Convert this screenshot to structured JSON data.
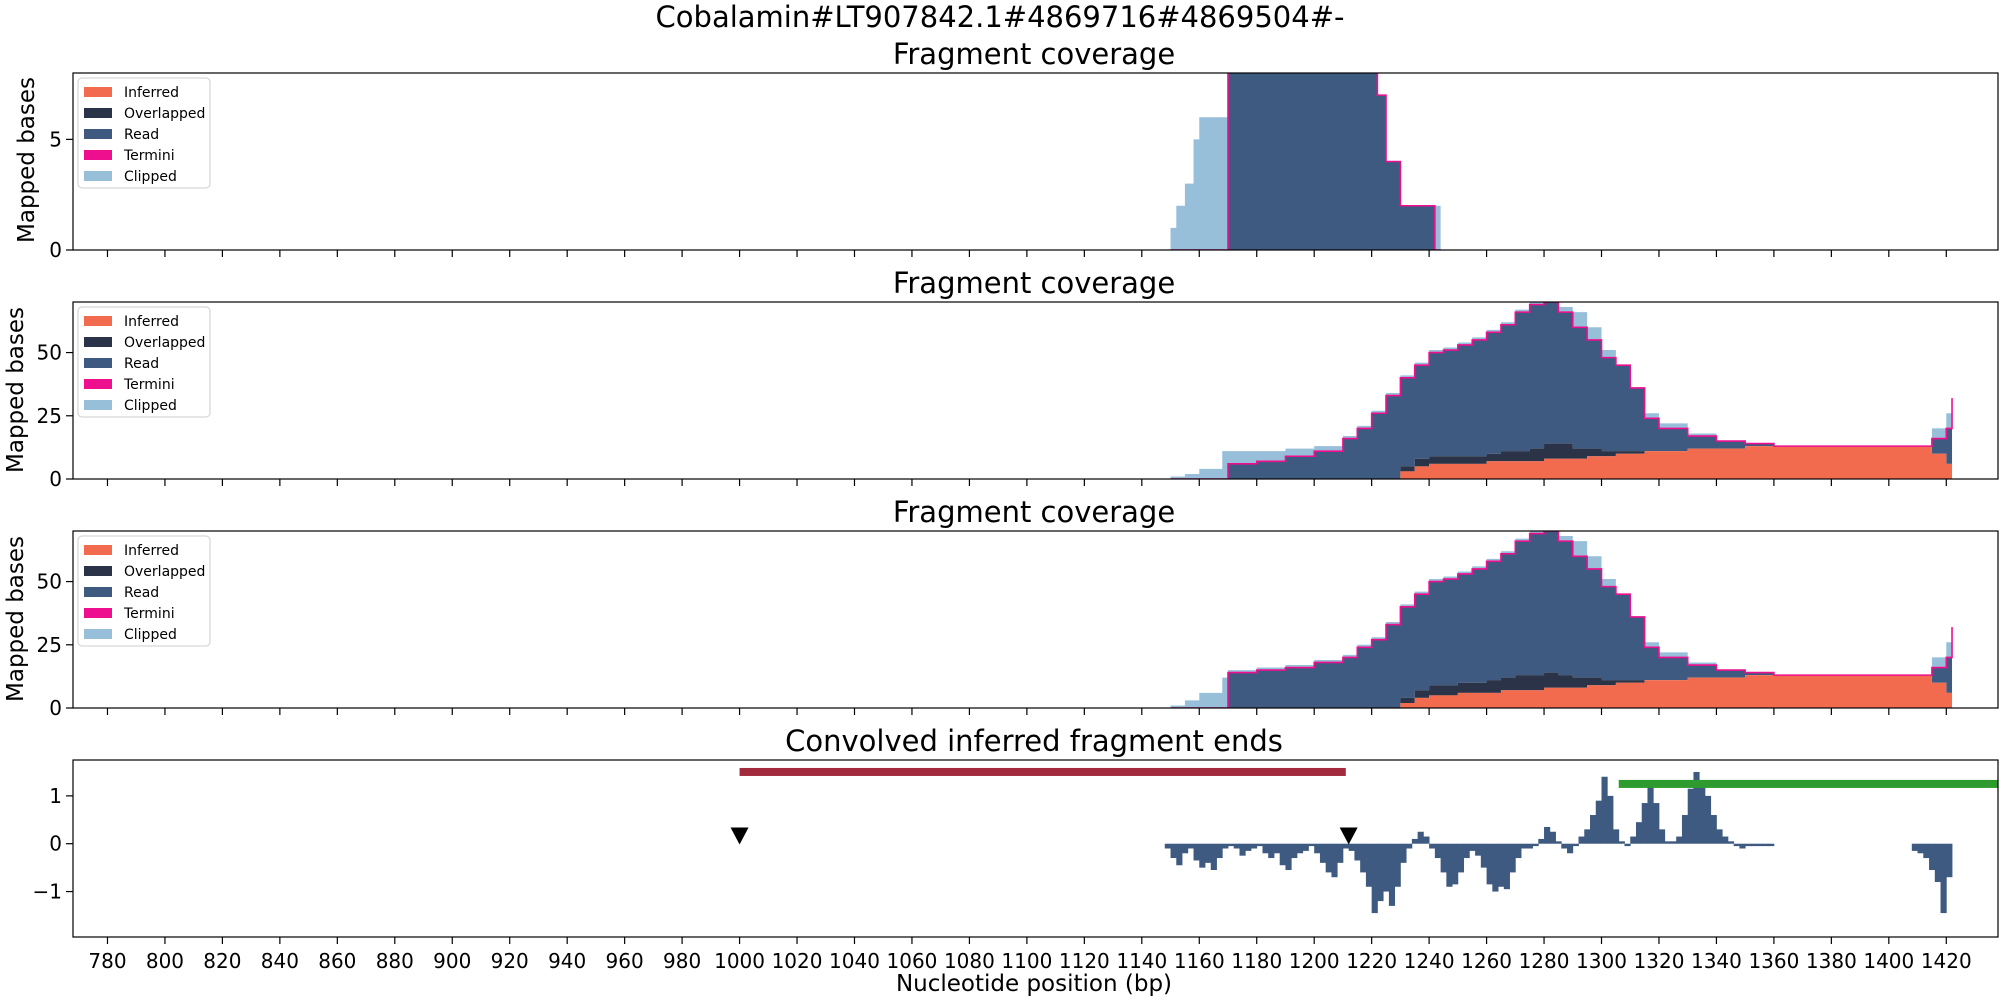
{
  "suptitle": "Cobalamin#LT907842.1#4869716#4869504#-",
  "colors": {
    "inferred": "#f26b4e",
    "overlapped": "#2a3347",
    "read": "#3e5a80",
    "termini": "#ee0f8f",
    "clipped": "#98bfda",
    "red_bar": "#a32a3d",
    "green_bar": "#2d9b2d",
    "signal": "#3e5a80",
    "marker": "#000000"
  },
  "chart_data": [
    {
      "type": "area",
      "title": "Fragment coverage",
      "ylabel": "Mapped bases",
      "xlim": [
        768,
        1438
      ],
      "ylim": [
        0,
        8
      ],
      "yticks": [
        "0",
        "5"
      ],
      "ytick_values": [
        0,
        5
      ],
      "legend": {
        "placement": "top-left",
        "entries": [
          "Inferred",
          "Overlapped",
          "Read",
          "Termini",
          "Clipped"
        ]
      },
      "x": [
        1150,
        1152,
        1155,
        1158,
        1160,
        1170,
        1175,
        1180,
        1190,
        1200,
        1210,
        1218,
        1222,
        1225,
        1230,
        1232,
        1238,
        1242,
        1244
      ],
      "read": [
        0,
        0,
        0,
        0,
        0,
        9,
        9,
        9,
        9,
        9,
        9,
        9,
        7,
        4,
        2,
        2,
        2,
        0,
        0
      ],
      "clipped_top": [
        1,
        2,
        3,
        5,
        6,
        9,
        9,
        9,
        9,
        9,
        9,
        9,
        7,
        4,
        2,
        2,
        2,
        2,
        0
      ]
    },
    {
      "type": "area",
      "title": "Fragment coverage",
      "ylabel": "Mapped bases",
      "xlim": [
        768,
        1438
      ],
      "ylim": [
        0,
        70
      ],
      "yticks": [
        "0",
        "25",
        "50"
      ],
      "ytick_values": [
        0,
        25,
        50
      ],
      "legend": {
        "placement": "top-left",
        "entries": [
          "Inferred",
          "Overlapped",
          "Read",
          "Termini",
          "Clipped"
        ]
      },
      "x": [
        1150,
        1155,
        1160,
        1168,
        1170,
        1180,
        1190,
        1200,
        1210,
        1215,
        1220,
        1225,
        1230,
        1235,
        1240,
        1245,
        1250,
        1255,
        1260,
        1265,
        1270,
        1275,
        1280,
        1285,
        1290,
        1295,
        1300,
        1305,
        1310,
        1315,
        1320,
        1330,
        1340,
        1350,
        1360,
        1380,
        1400,
        1410,
        1415,
        1420,
        1422
      ],
      "inferred": [
        0,
        0,
        0,
        0,
        0,
        0,
        0,
        0,
        0,
        0,
        0,
        0,
        3,
        5,
        6,
        6,
        6,
        6,
        7,
        7,
        7,
        7,
        8,
        8,
        8,
        9,
        9,
        10,
        10,
        11,
        11,
        12,
        12,
        13,
        13,
        13,
        13,
        13,
        10,
        6,
        6
      ],
      "overlapped": [
        0,
        0,
        0,
        0,
        0,
        0,
        0,
        0,
        0,
        0,
        0,
        0,
        2,
        3,
        3,
        3,
        3,
        3,
        3,
        4,
        4,
        5,
        6,
        6,
        4,
        3,
        2,
        1,
        1,
        0,
        0,
        0,
        0,
        0,
        0,
        0,
        0,
        0,
        0,
        0,
        0
      ],
      "read_top": [
        0,
        0,
        0,
        0,
        6,
        7,
        9,
        11,
        16,
        20,
        26,
        33,
        40,
        45,
        50,
        51,
        53,
        55,
        58,
        61,
        66,
        69,
        70,
        66,
        60,
        55,
        48,
        45,
        36,
        24,
        20,
        17,
        15,
        14,
        13,
        13,
        13,
        13,
        16,
        20,
        32
      ],
      "clipped_top": [
        1,
        2,
        4,
        11,
        11,
        11,
        12,
        13,
        17,
        21,
        27,
        34,
        41,
        46,
        51,
        52,
        54,
        56,
        59,
        62,
        67,
        70,
        70,
        68,
        66,
        60,
        51,
        45,
        36,
        26,
        22,
        18,
        15,
        14,
        13,
        13,
        13,
        13,
        20,
        26,
        35
      ]
    },
    {
      "type": "area",
      "title": "Fragment coverage",
      "ylabel": "Mapped bases",
      "xlim": [
        768,
        1438
      ],
      "ylim": [
        0,
        70
      ],
      "yticks": [
        "0",
        "25",
        "50"
      ],
      "ytick_values": [
        0,
        25,
        50
      ],
      "legend": {
        "placement": "top-left",
        "entries": [
          "Inferred",
          "Overlapped",
          "Read",
          "Termini",
          "Clipped"
        ]
      },
      "x": [
        1150,
        1155,
        1160,
        1168,
        1170,
        1180,
        1190,
        1200,
        1210,
        1215,
        1220,
        1225,
        1230,
        1235,
        1240,
        1245,
        1250,
        1255,
        1260,
        1265,
        1270,
        1275,
        1280,
        1285,
        1290,
        1295,
        1300,
        1305,
        1310,
        1315,
        1320,
        1330,
        1340,
        1350,
        1360,
        1380,
        1400,
        1410,
        1415,
        1420,
        1422
      ],
      "inferred": [
        0,
        0,
        0,
        0,
        0,
        0,
        0,
        0,
        0,
        0,
        0,
        0,
        2,
        4,
        5,
        5,
        6,
        6,
        6,
        7,
        7,
        7,
        8,
        8,
        8,
        9,
        9,
        10,
        10,
        11,
        11,
        12,
        12,
        13,
        13,
        13,
        13,
        13,
        10,
        6,
        6
      ],
      "overlapped": [
        0,
        0,
        0,
        0,
        0,
        0,
        0,
        0,
        0,
        0,
        0,
        0,
        2,
        3,
        4,
        4,
        4,
        4,
        5,
        5,
        6,
        6,
        6,
        5,
        4,
        3,
        2,
        1,
        1,
        0,
        0,
        0,
        0,
        0,
        0,
        0,
        0,
        0,
        0,
        0,
        0
      ],
      "read_top": [
        0,
        0,
        0,
        0,
        14,
        15,
        16,
        18,
        20,
        24,
        27,
        33,
        40,
        45,
        50,
        51,
        53,
        55,
        58,
        61,
        66,
        69,
        70,
        66,
        60,
        55,
        48,
        45,
        36,
        24,
        20,
        17,
        15,
        14,
        13,
        13,
        13,
        13,
        16,
        20,
        32
      ],
      "clipped_top": [
        1,
        3,
        6,
        12,
        15,
        16,
        17,
        19,
        21,
        25,
        28,
        34,
        41,
        46,
        51,
        52,
        54,
        56,
        59,
        62,
        67,
        70,
        70,
        68,
        66,
        60,
        51,
        45,
        36,
        26,
        22,
        18,
        15,
        14,
        13,
        13,
        13,
        13,
        20,
        26,
        35
      ]
    },
    {
      "type": "bar",
      "title": "Convolved inferred fragment ends",
      "xlabel": "Nucleotide position (bp)",
      "xlim": [
        768,
        1438
      ],
      "ylim": [
        -1.95,
        1.75
      ],
      "yticks": [
        "−1",
        "0",
        "1"
      ],
      "ytick_values": [
        -1,
        0,
        1
      ],
      "xticks": [
        "780",
        "800",
        "820",
        "840",
        "860",
        "880",
        "900",
        "920",
        "940",
        "960",
        "980",
        "1000",
        "1020",
        "1040",
        "1060",
        "1080",
        "1100",
        "1120",
        "1140",
        "1160",
        "1180",
        "1200",
        "1220",
        "1240",
        "1260",
        "1280",
        "1300",
        "1320",
        "1340",
        "1360",
        "1380",
        "1400",
        "1420"
      ],
      "xtick_values": [
        780,
        800,
        820,
        840,
        860,
        880,
        900,
        920,
        940,
        960,
        980,
        1000,
        1020,
        1040,
        1060,
        1080,
        1100,
        1120,
        1140,
        1160,
        1180,
        1200,
        1220,
        1240,
        1260,
        1280,
        1300,
        1320,
        1340,
        1360,
        1380,
        1400,
        1420
      ],
      "intervals": [
        {
          "from": 1000,
          "to": 1211,
          "y": 1.5,
          "color": "red"
        },
        {
          "from": 1306,
          "to": 1438,
          "y": 1.25,
          "color": "green"
        }
      ],
      "markers": [
        {
          "x": 1000,
          "y": 0.15
        },
        {
          "x": 1212,
          "y": 0.15
        }
      ],
      "signal": {
        "x": [
          1149,
          1151,
          1153,
          1155,
          1157,
          1159,
          1161,
          1163,
          1165,
          1167,
          1169,
          1171,
          1173,
          1175,
          1177,
          1179,
          1181,
          1183,
          1185,
          1187,
          1189,
          1191,
          1193,
          1195,
          1197,
          1199,
          1201,
          1203,
          1205,
          1207,
          1209,
          1211,
          1213,
          1215,
          1217,
          1219,
          1221,
          1223,
          1225,
          1227,
          1229,
          1231,
          1233,
          1235,
          1237,
          1239,
          1241,
          1243,
          1245,
          1247,
          1249,
          1251,
          1253,
          1255,
          1257,
          1259,
          1261,
          1263,
          1265,
          1267,
          1269,
          1271,
          1273,
          1275,
          1277,
          1279,
          1281,
          1283,
          1285,
          1287,
          1289,
          1291,
          1293,
          1295,
          1297,
          1299,
          1301,
          1303,
          1305,
          1307,
          1309,
          1311,
          1313,
          1315,
          1317,
          1319,
          1321,
          1323,
          1325,
          1327,
          1329,
          1331,
          1333,
          1335,
          1337,
          1339,
          1341,
          1343,
          1345,
          1347,
          1349,
          1351,
          1353,
          1355,
          1357,
          1359,
          1409,
          1411,
          1413,
          1415,
          1417,
          1419,
          1421
        ],
        "y": [
          -0.1,
          -0.3,
          -0.45,
          -0.2,
          -0.1,
          -0.35,
          -0.5,
          -0.4,
          -0.55,
          -0.3,
          -0.1,
          -0.05,
          -0.1,
          -0.25,
          -0.15,
          -0.1,
          -0.05,
          -0.2,
          -0.3,
          -0.2,
          -0.45,
          -0.55,
          -0.3,
          -0.2,
          -0.15,
          -0.05,
          -0.2,
          -0.4,
          -0.6,
          -0.7,
          -0.4,
          -0.1,
          -0.15,
          -0.35,
          -0.6,
          -0.9,
          -1.45,
          -1.2,
          -1.0,
          -1.3,
          -0.9,
          -0.4,
          -0.1,
          0.1,
          0.25,
          0.15,
          -0.1,
          -0.3,
          -0.6,
          -0.9,
          -0.85,
          -0.6,
          -0.3,
          -0.15,
          -0.25,
          -0.5,
          -0.85,
          -1.0,
          -0.9,
          -0.95,
          -0.6,
          -0.3,
          -0.1,
          -0.1,
          -0.05,
          0.1,
          0.35,
          0.25,
          0.05,
          -0.1,
          -0.2,
          -0.05,
          0.15,
          0.3,
          0.6,
          0.9,
          1.4,
          1.0,
          0.3,
          0.05,
          -0.05,
          0.15,
          0.45,
          0.85,
          1.25,
          0.85,
          0.3,
          0.05,
          0.05,
          0.15,
          0.6,
          1.15,
          1.5,
          1.3,
          1.0,
          0.6,
          0.3,
          0.15,
          0.05,
          -0.05,
          -0.1,
          -0.05,
          -0.05,
          -0.05,
          -0.05,
          -0.05,
          -0.15,
          -0.2,
          -0.3,
          -0.55,
          -0.8,
          -1.45,
          -0.7
        ]
      }
    }
  ]
}
